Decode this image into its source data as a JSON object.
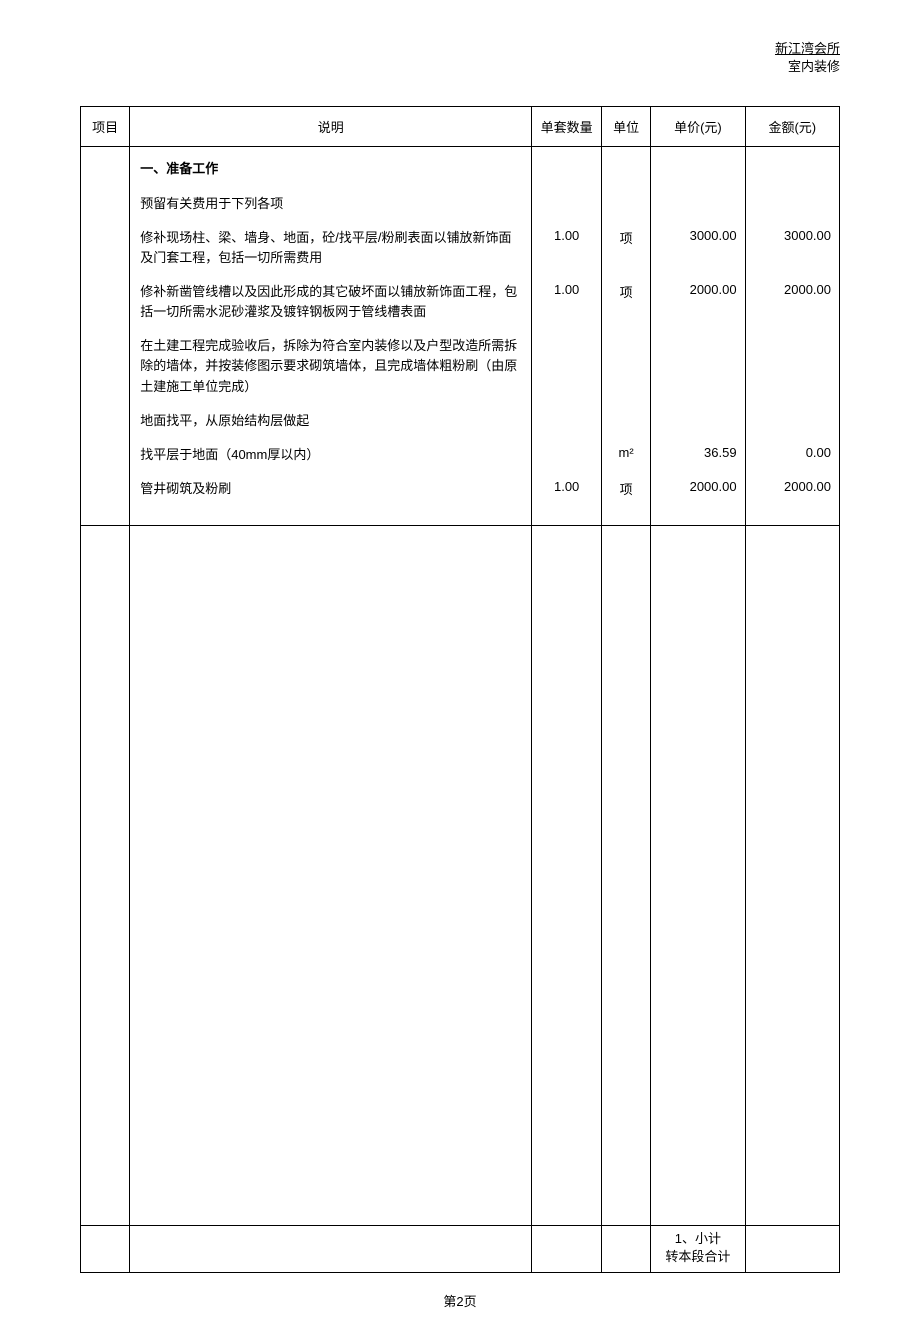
{
  "header": {
    "line1": "新江湾会所",
    "line2": "室内装修"
  },
  "columns": {
    "item": "项目",
    "desc": "说明",
    "qty": "单套数量",
    "unit": "单位",
    "price": "单价(元)",
    "amount": "金额(元)"
  },
  "rows": [
    {
      "desc": "一、准备工作",
      "bold": true,
      "qty": "",
      "unit": "",
      "price": "",
      "amount": ""
    },
    {
      "desc": "预留有关费用于下列各项",
      "qty": "",
      "unit": "",
      "price": "",
      "amount": ""
    },
    {
      "desc": "修补现场柱、梁、墙身、地面，砼/找平层/粉刷表面以铺放新饰面及门套工程，包括一切所需费用",
      "qty": "1.00",
      "unit": "项",
      "price": "3000.00",
      "amount": "3000.00"
    },
    {
      "desc": "修补新凿管线槽以及因此形成的其它破坏面以铺放新饰面工程，包括一切所需水泥砂灌浆及镀锌钢板网于管线槽表面",
      "qty": "1.00",
      "unit": "项",
      "price": "2000.00",
      "amount": "2000.00"
    },
    {
      "desc": "在土建工程完成验收后，拆除为符合室内装修以及户型改造所需拆除的墙体，并按装修图示要求砌筑墙体，且完成墙体粗粉刷（由原土建施工单位完成）",
      "qty": "",
      "unit": "",
      "price": "",
      "amount": ""
    },
    {
      "desc": "地面找平，从原始结构层做起",
      "qty": "",
      "unit": "",
      "price": "",
      "amount": ""
    },
    {
      "desc": "找平层于地面（40mm厚以内）",
      "qty": "",
      "unit": "m²",
      "price": "36.59",
      "amount": "0.00",
      "last": false
    },
    {
      "desc": "管井砌筑及粉刷",
      "qty": "1.00",
      "unit": "项",
      "price": "2000.00",
      "amount": "2000.00",
      "last": true
    }
  ],
  "footer": {
    "subtotal_label": "1、小计",
    "carry_label": "转本段合计"
  },
  "pagenum": "第2页"
}
